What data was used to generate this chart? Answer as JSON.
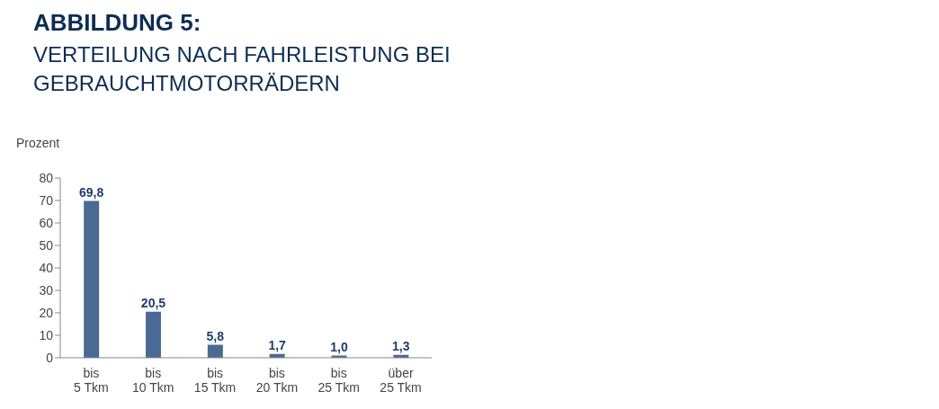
{
  "chart_data": {
    "type": "bar",
    "title": "ABBILDUNG 5:",
    "subtitle": "VERTEILUNG NACH FAHRLEISTUNG BEI GEBRAUCHTMOTORRÄDERN",
    "ylabel": "Prozent",
    "categories": [
      "bis 5 Tkm",
      "bis 10 Tkm",
      "bis 15 Tkm",
      "bis 20 Tkm",
      "bis 25 Tkm",
      "über 25 Tkm"
    ],
    "values": [
      69.8,
      20.5,
      5.8,
      1.7,
      1.0,
      1.3
    ],
    "value_labels": [
      "69,8",
      "20,5",
      "5,8",
      "1,7",
      "1,0",
      "1,3"
    ],
    "color": "#4a6a94",
    "ylim": [
      0,
      80
    ],
    "yticks": [
      0,
      10,
      20,
      30,
      40,
      50,
      60,
      70,
      80
    ],
    "grid": false
  }
}
